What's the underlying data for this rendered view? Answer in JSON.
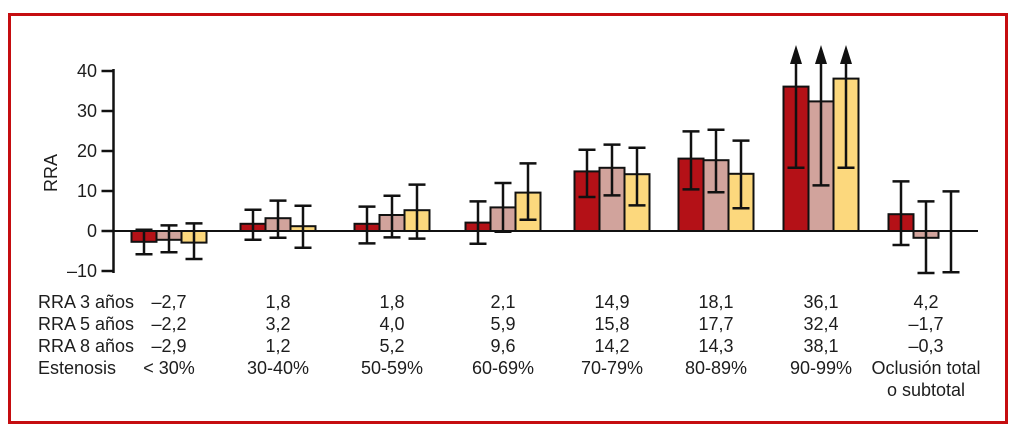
{
  "figure": {
    "border_color": "#c50d10",
    "background": "#ffffff"
  },
  "chart_data": {
    "type": "bar",
    "title": "",
    "ylabel": "RRA",
    "ylim": [
      -10,
      44
    ],
    "yticks": [
      40,
      30,
      20,
      10,
      0,
      -10
    ],
    "ytick_labels": [
      "40",
      "30",
      "20",
      "10",
      "0",
      "–10"
    ],
    "grid": false,
    "legend_position": "none",
    "error_bars": true,
    "offscale_upper_marker": "arrow",
    "categories": [
      "< 30%",
      "30-40%",
      "50-59%",
      "60-69%",
      "70-79%",
      "80-89%",
      "90-99%",
      "Oclusión total o subtotal"
    ],
    "series": [
      {
        "name": "RRA 3 años",
        "color": "#b41117",
        "values": [
          -2.7,
          1.8,
          1.8,
          2.1,
          14.9,
          18.1,
          36.1,
          4.2
        ],
        "ci_low": [
          -5.8,
          -2.2,
          -3.1,
          -3.2,
          8.5,
          10.4,
          15.8,
          -3.5
        ],
        "ci_high": [
          0.3,
          5.3,
          6.1,
          7.4,
          20.3,
          24.9,
          46,
          12.4
        ]
      },
      {
        "name": "RRA 5 años",
        "color": "#d1a39c",
        "values": [
          -2.2,
          3.2,
          4.0,
          5.9,
          15.8,
          17.7,
          32.4,
          -1.7
        ],
        "ci_low": [
          -5.3,
          -1.7,
          -1.6,
          -0.2,
          8.9,
          9.7,
          11.4,
          -10.5
        ],
        "ci_high": [
          1.4,
          7.6,
          8.8,
          12.0,
          21.6,
          25.3,
          46,
          7.4
        ]
      },
      {
        "name": "RRA 8 años",
        "color": "#fcd87d",
        "values": [
          -2.9,
          1.2,
          5.2,
          9.6,
          14.2,
          14.3,
          38.1,
          -0.3
        ],
        "ci_low": [
          -7.0,
          -4.2,
          -1.9,
          2.8,
          6.4,
          5.7,
          15.8,
          -10.3
        ],
        "ci_high": [
          1.9,
          6.3,
          11.6,
          16.9,
          20.8,
          22.6,
          46,
          9.9
        ]
      }
    ]
  },
  "table": {
    "rows": [
      {
        "label": "RRA 3 años",
        "values": [
          "–2,7",
          "1,8",
          "1,8",
          "2,1",
          "14,9",
          "18,1",
          "36,1",
          "4,2"
        ]
      },
      {
        "label": "RRA 5 años",
        "values": [
          "–2,2",
          "3,2",
          "4,0",
          "5,9",
          "15,8",
          "17,7",
          "32,4",
          "–1,7"
        ]
      },
      {
        "label": "RRA 8 años",
        "values": [
          "–2,9",
          "1,2",
          "5,2",
          "9,6",
          "14,2",
          "14,3",
          "38,1",
          "–0,3"
        ]
      },
      {
        "label": "Estenosis",
        "values": [
          "< 30%",
          "30-40%",
          "50-59%",
          "60-69%",
          "70-79%",
          "80-89%",
          "90-99%",
          "Oclusión total\no subtotal"
        ]
      }
    ]
  }
}
